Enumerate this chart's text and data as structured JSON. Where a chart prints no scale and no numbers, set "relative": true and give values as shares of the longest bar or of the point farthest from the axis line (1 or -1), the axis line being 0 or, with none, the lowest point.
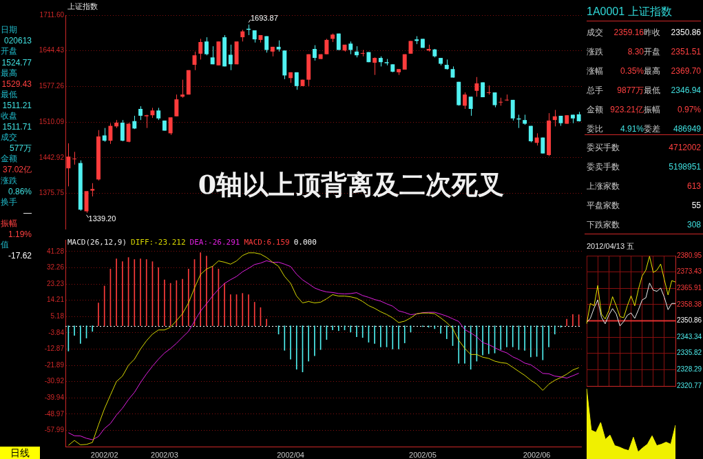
{
  "chart_data": [
    {
      "type": "candlestick",
      "title": "上证指数",
      "categories": [
        null,
        null,
        null,
        null,
        null,
        null,
        "2002/02",
        null,
        null,
        null,
        null,
        null,
        null,
        null,
        null,
        null,
        "2002/03",
        null,
        null,
        null,
        null,
        null,
        null,
        null,
        null,
        null,
        null,
        null,
        null,
        null,
        null,
        null,
        null,
        null,
        null,
        null,
        null,
        "2002/04",
        null,
        null,
        null,
        null,
        null,
        null,
        null,
        null,
        null,
        null,
        null,
        null,
        null,
        null,
        null,
        null,
        null,
        null,
        null,
        null,
        null,
        "2002/05",
        null,
        null,
        null,
        null,
        null,
        null,
        null,
        null,
        null,
        null,
        null,
        null,
        null,
        null,
        null,
        null,
        null,
        null,
        "2002/06",
        null,
        null,
        null,
        null,
        null,
        null,
        null
      ],
      "ohlc": [
        [
          1423,
          1470,
          1389,
          1445
        ],
        [
          1440,
          1454,
          1430,
          1441
        ],
        [
          1433,
          1438,
          1343,
          1345
        ],
        [
          1342,
          1380,
          1339.2,
          1380
        ],
        [
          1381,
          1395,
          1370,
          1384
        ],
        [
          1402,
          1495,
          1400,
          1483
        ],
        [
          1485,
          1499,
          1473,
          1475
        ],
        [
          1475,
          1508,
          1469,
          1503
        ],
        [
          1502,
          1514,
          1499,
          1509
        ],
        [
          1509,
          1514,
          1474,
          1475
        ],
        [
          1473,
          1509,
          1472,
          1507
        ],
        [
          1512,
          1522,
          1497,
          1498
        ],
        [
          1535,
          1540,
          1514,
          1522
        ],
        [
          1521,
          1524,
          1499,
          1523
        ],
        [
          1523,
          1537,
          1518,
          1532
        ],
        [
          1532,
          1537,
          1514,
          1517
        ],
        [
          1513,
          1513,
          1494,
          1494
        ],
        [
          1489,
          1519,
          1486,
          1519
        ],
        [
          1521,
          1562,
          1521,
          1553
        ],
        [
          1558,
          1590,
          1556,
          1562
        ],
        [
          1562,
          1608,
          1562,
          1608
        ],
        [
          1618,
          1643,
          1608,
          1636
        ],
        [
          1639,
          1667,
          1628,
          1661
        ],
        [
          1662,
          1670,
          1636,
          1638
        ],
        [
          1632,
          1653,
          1619,
          1619
        ],
        [
          1617,
          1662,
          1617,
          1662
        ],
        [
          1670,
          1674,
          1615,
          1615
        ],
        [
          1637,
          1656,
          1608,
          1619
        ],
        [
          1619,
          1662,
          1619,
          1662
        ],
        [
          1670,
          1684,
          1662,
          1681
        ],
        [
          1686,
          1693.87,
          1674,
          1684
        ],
        [
          1683,
          1683,
          1660,
          1666
        ],
        [
          1665,
          1674,
          1660,
          1674
        ],
        [
          1672,
          1672,
          1641,
          1646
        ],
        [
          1643,
          1652,
          1634,
          1652
        ],
        [
          1652,
          1664,
          1643,
          1647
        ],
        [
          1645,
          1645,
          1591,
          1598
        ],
        [
          1593,
          1604,
          1584,
          1604
        ],
        [
          1604,
          1604,
          1571,
          1578
        ],
        [
          1578,
          1590,
          1578,
          1590
        ],
        [
          1590,
          1638,
          1578,
          1638
        ],
        [
          1648,
          1655,
          1626,
          1631
        ],
        [
          1629,
          1638,
          1629,
          1638
        ],
        [
          1638,
          1667,
          1638,
          1665
        ],
        [
          1667,
          1677,
          1661,
          1675
        ],
        [
          1677,
          1677,
          1646,
          1646
        ],
        [
          1645,
          1656,
          1643,
          1656
        ],
        [
          1658,
          1662,
          1638,
          1646
        ],
        [
          1643,
          1653,
          1632,
          1636
        ],
        [
          1639,
          1646,
          1634,
          1640
        ],
        [
          1642,
          1642,
          1623,
          1623
        ],
        [
          1622,
          1632,
          1599,
          1631
        ],
        [
          1631,
          1634,
          1615,
          1623
        ],
        [
          1623,
          1629,
          1617,
          1621
        ],
        [
          1619,
          1619,
          1604,
          1605
        ],
        [
          1604,
          1610,
          1599,
          1610
        ],
        [
          1609,
          1638,
          1609,
          1638
        ],
        [
          1639,
          1663,
          1639,
          1663
        ],
        [
          1666,
          1672,
          1657,
          1663
        ],
        [
          1667,
          1667,
          1650,
          1650
        ],
        [
          1645,
          1656,
          1643,
          1648
        ],
        [
          1647,
          1648,
          1632,
          1634
        ],
        [
          1631,
          1631,
          1617,
          1620
        ],
        [
          1618,
          1628,
          1609,
          1610
        ],
        [
          1610,
          1615,
          1594,
          1594
        ],
        [
          1586,
          1586,
          1541,
          1542
        ],
        [
          1541,
          1566,
          1535,
          1562
        ],
        [
          1558,
          1558,
          1522,
          1535
        ],
        [
          1569,
          1595,
          1558,
          1583
        ],
        [
          1585,
          1585,
          1557,
          1557
        ],
        [
          1565,
          1579,
          1562,
          1566
        ],
        [
          1566,
          1566,
          1538,
          1542
        ],
        [
          1547,
          1556,
          1541,
          1548
        ],
        [
          1551,
          1562,
          1550,
          1552
        ],
        [
          1552,
          1552,
          1513,
          1517
        ],
        [
          1517,
          1524,
          1499,
          1515
        ],
        [
          1514,
          1524,
          1505,
          1507
        ],
        [
          1503,
          1503,
          1472,
          1474
        ],
        [
          1471,
          1489,
          1466,
          1481
        ],
        [
          1481,
          1481,
          1451,
          1451
        ],
        [
          1448,
          1527,
          1446,
          1513
        ],
        [
          1514,
          1533,
          1502,
          1521
        ],
        [
          1522,
          1522,
          1503,
          1508
        ],
        [
          1507,
          1523,
          1507,
          1523
        ],
        [
          1524,
          1524,
          1508,
          1517
        ],
        [
          1524.77,
          1529.43,
          1511.21,
          1511.71
        ]
      ],
      "ylim": [
        1309,
        1711.6
      ],
      "yticks": [
        {
          "value": 1711.6,
          "label": "1711.60"
        },
        1644.43,
        1577.26,
        1510.09,
        1442.92,
        1375.75
      ],
      "grid": "y",
      "tick_labels": "y",
      "annotations": [
        "1693.87",
        "1339.20",
        "0轴以上顶背离及二次死叉"
      ]
    },
    {
      "type": "bar",
      "title": "MACD(26,12,9)",
      "categories": [
        null,
        null,
        null,
        null,
        null,
        null,
        "2002/02",
        null,
        null,
        null,
        null,
        null,
        null,
        null,
        null,
        null,
        "2002/03",
        null,
        null,
        null,
        null,
        null,
        null,
        null,
        null,
        null,
        null,
        null,
        null,
        null,
        null,
        null,
        null,
        null,
        null,
        null,
        null,
        "2002/04",
        null,
        null,
        null,
        null,
        null,
        null,
        null,
        null,
        null,
        null,
        null,
        null,
        null,
        null,
        null,
        null,
        null,
        null,
        null,
        null,
        null,
        "2002/05",
        null,
        null,
        null,
        null,
        null,
        null,
        null,
        null,
        null,
        null,
        null,
        null,
        null,
        null,
        null,
        null,
        null,
        null,
        "2002/06",
        null,
        null,
        null,
        null,
        null,
        null,
        null
      ],
      "series": [
        {
          "name": "DIFF:-23.212",
          "type": "line",
          "color": "#d8d800",
          "values": [
            -66.3,
            -63.6,
            -66.0,
            -65.8,
            -64.7,
            -55.0,
            -46.0,
            -38.4,
            -30.9,
            -27.9,
            -21.9,
            -18.5,
            -12.9,
            -8.3,
            -4.6,
            -2.3,
            -2.3,
            -0.8,
            2.9,
            6.7,
            12.7,
            21.0,
            28.5,
            31.5,
            33.0,
            36.0,
            35.3,
            34.2,
            36.0,
            39.0,
            40.5,
            40.5,
            39.8,
            37.9,
            35.3,
            33.0,
            27.4,
            23.6,
            16.5,
            12.7,
            13.5,
            12.7,
            13.1,
            15.0,
            17.3,
            16.5,
            16.5,
            16.1,
            15.3,
            13.5,
            11.2,
            9.7,
            7.8,
            6.3,
            4.4,
            1.8,
            2.6,
            4.4,
            6.7,
            7.1,
            7.1,
            6.7,
            4.4,
            1.8,
            -1.6,
            -8.0,
            -12.5,
            -15.9,
            -15.9,
            -17.4,
            -18.1,
            -19.6,
            -20.4,
            -20.8,
            -23.0,
            -25.3,
            -27.5,
            -30.2,
            -32.4,
            -35.8,
            -32.4,
            -30.2,
            -28.7,
            -26.8,
            -24.5,
            -23.212
          ]
        },
        {
          "name": "DEA:-26.291",
          "type": "line",
          "color": "#e020e0",
          "values": [
            -59.3,
            -61.0,
            -61.1,
            -62.4,
            -63.2,
            -61.4,
            -57.0,
            -54.2,
            -49.5,
            -45.7,
            -40.9,
            -36.9,
            -31.5,
            -26.7,
            -22.4,
            -18.5,
            -15.1,
            -12.6,
            -9.7,
            -6.3,
            -3.1,
            2.6,
            8.2,
            12.2,
            16.5,
            20.3,
            23.5,
            25.6,
            27.4,
            30.0,
            31.9,
            34.0,
            34.8,
            36.1,
            35.2,
            35.3,
            34.2,
            32.9,
            28.6,
            25.5,
            23.3,
            21.0,
            19.7,
            18.8,
            18.5,
            17.9,
            17.7,
            17.9,
            18.4,
            16.8,
            15.8,
            14.6,
            13.7,
            12.2,
            10.9,
            8.3,
            7.4,
            6.2,
            6.6,
            7.3,
            7.5,
            7.5,
            6.5,
            5.4,
            3.9,
            2.4,
            -2.1,
            -3.9,
            -6.1,
            -9.3,
            -10.4,
            -12.1,
            -13.8,
            -15.0,
            -17.2,
            -18.7,
            -20.7,
            -21.6,
            -23.9,
            -26.4,
            -26.6,
            -27.9,
            -28.3,
            -29.0,
            -27.7,
            -26.291
          ]
        },
        {
          "name": "MACD:6.159",
          "type": "bar",
          "colors": [
            "#50f0f0",
            "#50f0f0",
            "#50f0f0",
            "#50f0f0",
            "#50f0f0",
            "#ff3c3c",
            "#ff3c3c",
            "#ff3c3c",
            "#ff3c3c",
            "#ff3c3c",
            "#ff3c3c",
            "#ff3c3c",
            "#ff3c3c",
            "#ff3c3c",
            "#ff3c3c",
            "#ff3c3c",
            "#ff3c3c",
            "#ff3c3c",
            "#ff3c3c",
            "#ff3c3c",
            "#ff3c3c",
            "#ff3c3c",
            "#ff3c3c",
            "#ff3c3c",
            "#ff3c3c",
            "#ff3c3c",
            "#ff3c3c",
            "#ff3c3c",
            "#ff3c3c",
            "#ff3c3c",
            "#ff3c3c",
            "#ff3c3c",
            "#ff3c3c",
            "#ff3c3c",
            "#ff3c3c",
            "#50f0f0",
            "#50f0f0",
            "#50f0f0",
            "#50f0f0",
            "#50f0f0",
            "#50f0f0",
            "#50f0f0",
            "#50f0f0",
            "#50f0f0",
            "#50f0f0",
            "#50f0f0",
            "#50f0f0",
            "#50f0f0",
            "#50f0f0",
            "#50f0f0",
            "#50f0f0",
            "#50f0f0",
            "#50f0f0",
            "#50f0f0",
            "#50f0f0",
            "#50f0f0",
            "#50f0f0",
            "#50f0f0",
            "#ff3c3c",
            "#50f0f0",
            "#50f0f0",
            "#50f0f0",
            "#50f0f0",
            "#50f0f0",
            "#50f0f0",
            "#50f0f0",
            "#50f0f0",
            "#50f0f0",
            "#50f0f0",
            "#50f0f0",
            "#50f0f0",
            "#50f0f0",
            "#50f0f0",
            "#50f0f0",
            "#50f0f0",
            "#50f0f0",
            "#50f0f0",
            "#50f0f0",
            "#50f0f0",
            "#50f0f0",
            "#50f0f0",
            "#50f0f0",
            "#50f0f0",
            "#ff3c3c",
            "#ff3c3c",
            "#ff3c3c"
          ],
          "values": [
            -14.0,
            -5.3,
            -9.8,
            -6.8,
            -3.1,
            12.7,
            22.1,
            31.5,
            37.2,
            35.6,
            37.9,
            36.8,
            37.2,
            36.8,
            35.6,
            32.3,
            25.5,
            23.6,
            25.1,
            25.9,
            31.5,
            36.8,
            40.6,
            38.7,
            33.0,
            31.5,
            23.6,
            17.3,
            17.3,
            18.0,
            17.3,
            13.1,
            10.1,
            3.7,
            null,
            -4.6,
            -13.6,
            -18.5,
            -24.1,
            -25.6,
            -19.6,
            -16.6,
            -13.2,
            -7.6,
            -2.3,
            -2.7,
            -2.3,
            -3.5,
            -6.1,
            -6.5,
            -9.1,
            -9.8,
            -11.7,
            -11.7,
            -12.9,
            -12.9,
            -9.5,
            -3.5,
            null,
            -0.4,
            -0.8,
            -1.6,
            -4.2,
            -7.2,
            -11.0,
            -20.8,
            -20.8,
            -24.1,
            -19.6,
            -16.2,
            -15.5,
            -15.1,
            -13.2,
            -11.7,
            -11.7,
            -13.2,
            -13.6,
            -17.3,
            -17.0,
            -18.9,
            -11.7,
            -4.6,
            -0.8,
            3.7,
            6.3,
            6.159
          ]
        }
      ],
      "ref_lines": [
        {
          "axis": "y",
          "value": 0,
          "label": "0.000",
          "color": "#ffffff",
          "line_style": "dotted"
        }
      ],
      "ylim": [
        -67,
        47.7
      ],
      "yticks": [
        41.28,
        32.26,
        23.23,
        14.21,
        5.18,
        -3.84,
        -12.87,
        -21.89,
        -30.92,
        -39.94,
        -48.97,
        -57.99
      ],
      "grid": "y",
      "legend": "top left",
      "marker": "none",
      "annotations": [
        "日线"
      ]
    },
    {
      "type": "line",
      "title": "2012/04/13 五",
      "categories": [
        null,
        null,
        null,
        null,
        null,
        null,
        null,
        null,
        null,
        null,
        null,
        null,
        null,
        null,
        null,
        null,
        null,
        null,
        null,
        null,
        null,
        null,
        null,
        null,
        null
      ],
      "series": [
        {
          "color": "#e8e800",
          "values": [
            2349.5,
            2358.9,
            2357.8,
            2367.2,
            2354.0,
            2351.7,
            2355.6,
            2362.0,
            2357.8,
            2352.8,
            2352.3,
            2357.8,
            2362.4,
            2357.8,
            2365.5,
            2371.6,
            2374.3,
            2380.7,
            2373.2,
            2374.3,
            2377.1,
            2369.9,
            2362.8,
            2369.4,
            2368.8
          ]
        },
        {
          "color": "#f0f0f0",
          "values": [
            2350.1,
            2352.0,
            2356.7,
            2360.5,
            2352.5,
            2349.5,
            2353.5,
            2356.5,
            2354.0,
            2348.5,
            2350.5,
            2353.4,
            2354.5,
            2352.0,
            2356.0,
            2360.5,
            2361.5,
            2368.3,
            2365.0,
            2364.5,
            2366.0,
            2361.7,
            2356.0,
            2358.9,
            2358.9
          ]
        }
      ],
      "ylim": [
        2320.77,
        2380.95
      ],
      "yticks": [
        2380.95,
        2373.43,
        2365.91,
        2358.38,
        2350.86,
        2343.34,
        2335.82,
        2328.29,
        2320.77
      ],
      "ref_lines": [
        {
          "axis": "y",
          "value": 2350.86,
          "color": "#e03030"
        }
      ],
      "grid": true,
      "tick_labels": "y",
      "marker": "none"
    },
    {
      "type": "area",
      "relative": true,
      "color": "#f0f000",
      "marker": "none",
      "tick_labels": false,
      "categories": [
        null,
        null,
        null,
        null,
        null,
        null,
        null,
        null,
        null,
        null,
        null,
        null,
        null,
        null,
        null,
        null,
        null,
        null,
        null,
        null
      ],
      "values": [
        1,
        0.41,
        0.38,
        0.52,
        0.28,
        0.34,
        0.19,
        0.17,
        0.14,
        0.12,
        0.31,
        0.1,
        0.16,
        0.21,
        0.33,
        0.19,
        0.21,
        0.24,
        0.21,
        0.48
      ]
    },
    {
      "type": "other",
      "annotations": [
        "日期",
        "020613",
        "开盘",
        "1524.77",
        "最高",
        "1529.43",
        "最低",
        "1511.21",
        "收盘",
        "1511.71",
        "成交",
        "577万",
        "金额",
        "37.02亿",
        "涨跌",
        "0.86%",
        "换手",
        "—",
        "振幅",
        "1.19%",
        "值",
        "-17.62"
      ],
      "colors": [
        "#20b8c8",
        "#40e0e0",
        "#20b8c8",
        "#40e0e0",
        "#20b8c8",
        "#ff4040",
        "#20b8c8",
        "#40e0e0",
        "#20b8c8",
        "#40e0e0",
        "#20b8c8",
        "#40e0e0",
        "#20b8c8",
        "#ff4040",
        "#20b8c8",
        "#40e0e0",
        "#20b8c8",
        "#ffffff",
        "#ff4040",
        "#ff4040",
        "#20b8c8",
        "#ffffff"
      ]
    },
    {
      "type": "other",
      "title": "1A0001 上证指数",
      "annotations": [
        "成交",
        "2359.16",
        "昨收",
        "2350.86",
        "涨跌",
        "8.30",
        "开盘",
        "2351.51",
        "涨幅",
        "0.35%",
        "最高",
        "2369.70",
        "总手",
        "9877万",
        "最低",
        "2346.94",
        "金额",
        "923.21亿",
        "振幅",
        "0.97%",
        "委比",
        "4.91%",
        "委差",
        "486949"
      ],
      "colors": [
        "#c8c8c8",
        "#ff4040",
        "#c8c8c8",
        "#ffffff",
        "#c8c8c8",
        "#ff4040",
        "#c8c8c8",
        "#ff4040",
        "#c8c8c8",
        "#ff4040",
        "#c8c8c8",
        "#ff4040",
        "#c8c8c8",
        "#ff4040",
        "#c8c8c8",
        "#40e0e0",
        "#c8c8c8",
        "#ff4040",
        "#c8c8c8",
        "#ff4040",
        "#c8c8c8",
        "#40e0e0",
        "#c8c8c8",
        "#40e0e0"
      ]
    },
    {
      "type": "other",
      "annotations": [
        "委买手数",
        "4712002",
        "委卖手数",
        "5198951",
        "上涨家数",
        "613",
        "平盘家数",
        "55",
        "下跌家数",
        "308"
      ],
      "colors": [
        "#c8c8c8",
        "#ff4040",
        "#c8c8c8",
        "#40e0e0",
        "#c8c8c8",
        "#ff4040",
        "#c8c8c8",
        "#ffffff",
        "#c8c8c8",
        "#40e0e0"
      ]
    }
  ]
}
